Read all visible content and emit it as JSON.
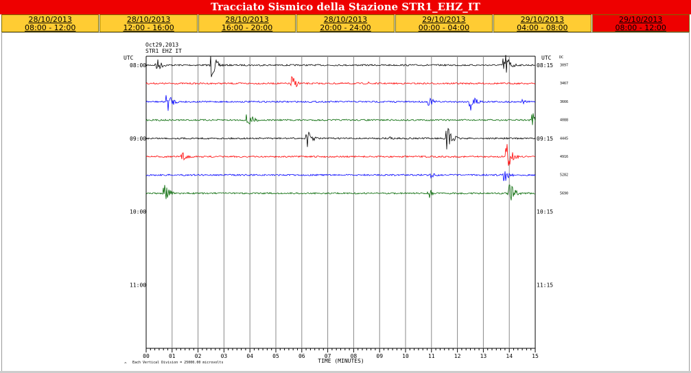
{
  "header": {
    "title": "Tracciato Sismico della Stazione STR1_EHZ_IT"
  },
  "tabs": [
    {
      "date": "28/10/2013",
      "time": "08:00 - 12:00",
      "active": false
    },
    {
      "date": "28/10/2013",
      "time": "12:00 - 16:00",
      "active": false
    },
    {
      "date": "28/10/2013",
      "time": "16:00 - 20:00",
      "active": false
    },
    {
      "date": "28/10/2013",
      "time": "20:00 - 24:00",
      "active": false
    },
    {
      "date": "29/10/2013",
      "time": "00:00 - 04:00",
      "active": false
    },
    {
      "date": "29/10/2013",
      "time": "04:00 - 08:00",
      "active": false
    },
    {
      "date": "29/10/2013",
      "time": "08:00 - 12:00",
      "active": true
    }
  ],
  "seismogram": {
    "date": "Oct29,2013",
    "station": "STR1 EHZ IT",
    "utc_left": "UTC",
    "utc_right": "UTC",
    "dc_label": "DC",
    "left_hours": [
      "08:00",
      "09:00",
      "10:00",
      "11:00"
    ],
    "right_hours": [
      "08:15",
      "09:15",
      "10:15",
      "11:15"
    ],
    "dc_values": [
      "3097",
      "3467",
      "3666",
      "4088",
      "4445",
      "4916",
      "5282",
      "5690"
    ],
    "x_ticks": [
      "00",
      "01",
      "02",
      "03",
      "04",
      "05",
      "06",
      "07",
      "08",
      "09",
      "10",
      "11",
      "12",
      "13",
      "14",
      "15"
    ],
    "x_axis_label": "TIME (MINUTES)",
    "scale_note": "Each Vertical Division = 25000.00 microvolts",
    "trace_colors": [
      "#000000",
      "#ff0000",
      "#0000ff",
      "#006600"
    ],
    "traces": [
      {
        "events": [
          [
            0.4,
            12
          ],
          [
            2.5,
            22
          ],
          [
            13.8,
            26
          ]
        ]
      },
      {
        "events": [
          [
            5.6,
            14
          ],
          [
            8.6,
            4
          ]
        ]
      },
      {
        "events": [
          [
            0.8,
            18
          ],
          [
            10.9,
            8
          ],
          [
            12.5,
            20
          ],
          [
            14.5,
            4
          ]
        ]
      },
      {
        "events": [
          [
            3.9,
            16
          ],
          [
            14.9,
            14
          ]
        ]
      },
      {
        "events": [
          [
            6.2,
            14
          ],
          [
            9.4,
            4
          ],
          [
            11.6,
            22
          ]
        ]
      },
      {
        "events": [
          [
            1.4,
            8
          ],
          [
            13.9,
            24
          ]
        ]
      },
      {
        "events": [
          [
            13.8,
            12
          ],
          [
            11.0,
            6
          ]
        ]
      },
      {
        "events": [
          [
            0.7,
            16
          ],
          [
            10.9,
            8
          ],
          [
            14.0,
            18
          ]
        ]
      }
    ]
  }
}
